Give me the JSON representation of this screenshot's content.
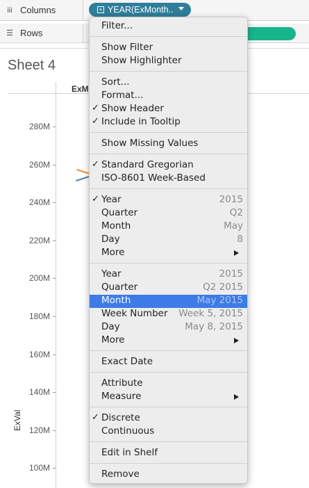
{
  "shelves": {
    "columns_label": "Columns",
    "rows_label": "Rows",
    "columns_pill": "YEAR(ExMonth.."
  },
  "sheet": {
    "title": "Sheet 4",
    "column_header": "ExMo",
    "y_axis_label": "ExVal",
    "y_ticks": [
      "280M",
      "260M",
      "240M",
      "220M",
      "200M",
      "180M",
      "160M",
      "140M",
      "120M",
      "100M"
    ]
  },
  "menu": {
    "filter": "Filter...",
    "show_filter": "Show Filter",
    "show_highlighter": "Show Highlighter",
    "sort": "Sort...",
    "format": "Format...",
    "show_header": "Show Header",
    "include_tooltip": "Include in Tooltip",
    "show_missing": "Show Missing Values",
    "standard_gregorian": "Standard Gregorian",
    "iso_week": "ISO-8601 Week-Based",
    "discrete_parts": [
      {
        "label": "Year",
        "value": "2015"
      },
      {
        "label": "Quarter",
        "value": "Q2"
      },
      {
        "label": "Month",
        "value": "May"
      },
      {
        "label": "Day",
        "value": "8"
      },
      {
        "label": "More",
        "value": ""
      }
    ],
    "continuous_parts": [
      {
        "label": "Year",
        "value": "2015"
      },
      {
        "label": "Quarter",
        "value": "Q2 2015"
      },
      {
        "label": "Month",
        "value": "May 2015"
      },
      {
        "label": "Week Number",
        "value": "Week 5, 2015"
      },
      {
        "label": "Day",
        "value": "May 8, 2015"
      },
      {
        "label": "More",
        "value": ""
      }
    ],
    "exact_date": "Exact Date",
    "attribute": "Attribute",
    "measure": "Measure",
    "discrete": "Discrete",
    "continuous": "Continuous",
    "edit_in_shelf": "Edit in Shelf",
    "remove": "Remove",
    "check_glyph": "✓"
  }
}
